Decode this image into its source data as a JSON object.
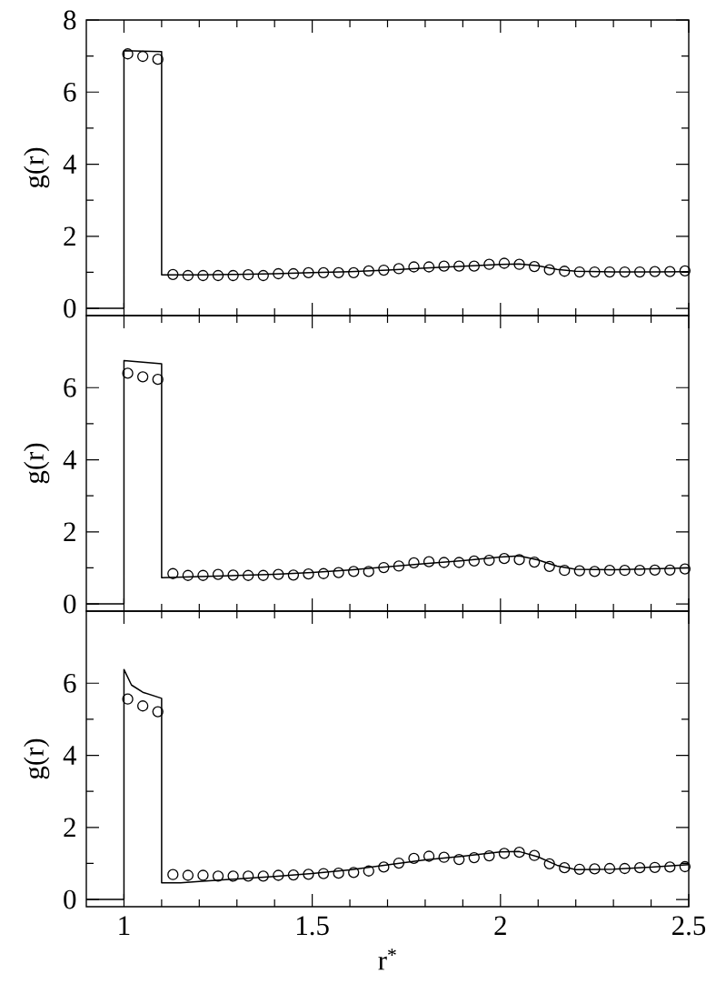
{
  "chart_data": [
    {
      "type": "line",
      "ylabel": "g(r)",
      "xlim": [
        0.9,
        2.5
      ],
      "ylim": [
        -0.2,
        8
      ],
      "xticks": [
        1,
        1.5,
        2,
        2.5
      ],
      "yticks": [
        0,
        2,
        4,
        6,
        8
      ],
      "tick_labels": "y",
      "series": [
        {
          "color": "#000000",
          "marker": "none",
          "x": [
            0.9,
            1.0,
            1.0,
            1.1,
            1.1,
            1.2,
            1.3,
            1.4,
            1.5,
            1.6,
            1.7,
            1.8,
            1.9,
            2.0,
            2.05,
            2.1,
            2.15,
            2.2,
            2.3,
            2.4,
            2.5
          ],
          "values": [
            0,
            0,
            7.15,
            7.12,
            0.93,
            0.93,
            0.94,
            0.96,
            0.99,
            1.02,
            1.06,
            1.12,
            1.17,
            1.22,
            1.23,
            1.18,
            1.08,
            1.03,
            1.01,
            1.01,
            1.02
          ]
        },
        {
          "type": "scatter",
          "color": "#000000",
          "marker": "circle",
          "x": [
            1.01,
            1.05,
            1.09,
            1.13,
            1.17,
            1.21,
            1.25,
            1.29,
            1.33,
            1.37,
            1.41,
            1.45,
            1.49,
            1.53,
            1.57,
            1.61,
            1.65,
            1.69,
            1.73,
            1.77,
            1.81,
            1.85,
            1.89,
            1.93,
            1.97,
            2.01,
            2.05,
            2.09,
            2.13,
            2.17,
            2.21,
            2.25,
            2.29,
            2.33,
            2.37,
            2.41,
            2.45,
            2.49
          ],
          "values": [
            7.06,
            6.99,
            6.91,
            0.94,
            0.91,
            0.91,
            0.91,
            0.91,
            0.93,
            0.91,
            0.96,
            0.96,
            0.99,
            0.99,
            0.99,
            0.99,
            1.04,
            1.06,
            1.1,
            1.15,
            1.15,
            1.17,
            1.17,
            1.17,
            1.22,
            1.25,
            1.22,
            1.16,
            1.07,
            1.03,
            1.01,
            1.01,
            1.01,
            1.01,
            1.01,
            1.02,
            1.02,
            1.04
          ]
        }
      ]
    },
    {
      "type": "line",
      "ylabel": "g(r)",
      "xlim": [
        0.9,
        2.5
      ],
      "ylim": [
        -0.2,
        8
      ],
      "xticks": [
        1,
        1.5,
        2,
        2.5
      ],
      "yticks": [
        0,
        2,
        4,
        6
      ],
      "tick_labels": "y",
      "series": [
        {
          "color": "#000000",
          "marker": "none",
          "x": [
            0.9,
            1.0,
            1.0,
            1.1,
            1.1,
            1.2,
            1.3,
            1.4,
            1.5,
            1.6,
            1.7,
            1.8,
            1.9,
            2.0,
            2.05,
            2.1,
            2.15,
            2.2,
            2.3,
            2.4,
            2.5
          ],
          "values": [
            0,
            0,
            6.75,
            6.66,
            0.73,
            0.76,
            0.79,
            0.82,
            0.87,
            0.94,
            1.03,
            1.12,
            1.2,
            1.3,
            1.33,
            1.22,
            1.05,
            0.96,
            0.95,
            0.97,
            1.0
          ]
        },
        {
          "type": "scatter",
          "color": "#000000",
          "marker": "circle",
          "x": [
            1.01,
            1.05,
            1.09,
            1.13,
            1.17,
            1.21,
            1.25,
            1.29,
            1.33,
            1.37,
            1.41,
            1.45,
            1.49,
            1.53,
            1.57,
            1.61,
            1.65,
            1.69,
            1.73,
            1.77,
            1.81,
            1.85,
            1.89,
            1.93,
            1.97,
            2.01,
            2.05,
            2.09,
            2.13,
            2.17,
            2.21,
            2.25,
            2.29,
            2.33,
            2.37,
            2.41,
            2.45,
            2.49
          ],
          "values": [
            6.4,
            6.3,
            6.23,
            0.84,
            0.79,
            0.79,
            0.82,
            0.8,
            0.79,
            0.79,
            0.82,
            0.8,
            0.83,
            0.84,
            0.87,
            0.9,
            0.9,
            1.01,
            1.05,
            1.14,
            1.17,
            1.15,
            1.15,
            1.19,
            1.21,
            1.26,
            1.23,
            1.16,
            1.04,
            0.93,
            0.92,
            0.9,
            0.93,
            0.93,
            0.93,
            0.94,
            0.94,
            0.97
          ]
        }
      ]
    },
    {
      "type": "line",
      "ylabel": "g(r)",
      "xlabel": "r$^{*}$",
      "xlim": [
        0.9,
        2.5
      ],
      "ylim": [
        -0.2,
        8
      ],
      "xticks": [
        1,
        1.5,
        2,
        2.5
      ],
      "yticks": [
        0,
        2,
        4,
        6
      ],
      "series": [
        {
          "color": "#000000",
          "marker": "none",
          "x": [
            0.9,
            1.0,
            1.0,
            1.02,
            1.05,
            1.1,
            1.1,
            1.15,
            1.2,
            1.3,
            1.4,
            1.5,
            1.6,
            1.7,
            1.8,
            1.9,
            2.0,
            2.05,
            2.1,
            2.15,
            2.2,
            2.3,
            2.4,
            2.5
          ],
          "values": [
            0,
            0,
            6.38,
            5.95,
            5.75,
            5.58,
            0.46,
            0.46,
            0.5,
            0.57,
            0.64,
            0.72,
            0.82,
            0.96,
            1.1,
            1.2,
            1.32,
            1.33,
            1.18,
            0.95,
            0.83,
            0.84,
            0.9,
            0.97
          ]
        },
        {
          "type": "scatter",
          "color": "#000000",
          "marker": "circle",
          "x": [
            1.01,
            1.05,
            1.09,
            1.13,
            1.17,
            1.21,
            1.25,
            1.29,
            1.33,
            1.37,
            1.41,
            1.45,
            1.49,
            1.53,
            1.57,
            1.61,
            1.65,
            1.69,
            1.73,
            1.77,
            1.81,
            1.85,
            1.89,
            1.93,
            1.97,
            2.01,
            2.05,
            2.09,
            2.13,
            2.17,
            2.21,
            2.25,
            2.29,
            2.33,
            2.37,
            2.41,
            2.45,
            2.49
          ],
          "values": [
            5.56,
            5.37,
            5.21,
            0.69,
            0.67,
            0.67,
            0.65,
            0.65,
            0.65,
            0.65,
            0.67,
            0.68,
            0.7,
            0.72,
            0.73,
            0.75,
            0.79,
            0.9,
            1.01,
            1.14,
            1.2,
            1.17,
            1.11,
            1.16,
            1.21,
            1.28,
            1.31,
            1.22,
            0.99,
            0.88,
            0.84,
            0.85,
            0.86,
            0.86,
            0.88,
            0.89,
            0.9,
            0.91
          ]
        }
      ]
    }
  ]
}
